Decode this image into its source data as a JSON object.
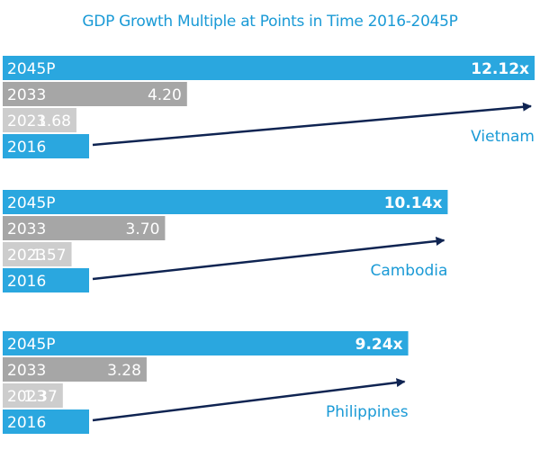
{
  "chart_data": {
    "type": "bar",
    "title": "GDP Growth Multiple at Points in Time 2016-2045P",
    "categories": [
      "2045P",
      "2033",
      "2023",
      "2016"
    ],
    "colors": {
      "2045P": "#2aa7df",
      "2033": "#a6a6a6",
      "2023": "#cdcdcd",
      "2016": "#2aa7df",
      "arrow": "#0f2452",
      "country_label": "#1a9ad6"
    },
    "xlim": [
      0,
      12.12
    ],
    "groups": [
      {
        "country": "Vietnam",
        "values": [
          12.12,
          4.2,
          1.68,
          1.0
        ],
        "labels": [
          "12.12x",
          "4.20",
          "1.68",
          ""
        ]
      },
      {
        "country": "Cambodia",
        "values": [
          10.14,
          3.7,
          1.57,
          1.0
        ],
        "labels": [
          "10.14x",
          "3.70",
          "1.57",
          ""
        ]
      },
      {
        "country": "Philippines",
        "values": [
          9.24,
          3.28,
          1.37,
          1.0
        ],
        "labels": [
          "9.24x",
          "3.28",
          "1.37",
          ""
        ]
      }
    ]
  }
}
